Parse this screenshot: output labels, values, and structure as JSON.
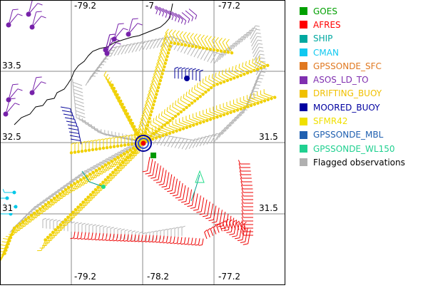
{
  "map": {
    "x_ticks_top": [
      "-79.2",
      "-7",
      "-77.2"
    ],
    "x_ticks_bottom": [
      "-79.2",
      "-78.2",
      "-77.2"
    ],
    "y_ticks_left": [
      "33.5",
      "32.5",
      "31"
    ],
    "y_ticks_right": [
      "31.5",
      "31.5"
    ],
    "colors": {
      "grid": "#888888",
      "coast": "#000000",
      "flagged": "#b4b4b4",
      "afres": "#ee0000",
      "sfmr": "#f0d000",
      "asos": "#7722aa",
      "moored": "#000099",
      "ship": "#00a090",
      "cman": "#00c8e8",
      "goes": "#009900",
      "wl150": "#22dd88"
    }
  },
  "legend": {
    "items": [
      {
        "label": "GOES",
        "color": "#00a000"
      },
      {
        "label": "AFRES",
        "color": "#ff0000"
      },
      {
        "label": "SHIP",
        "color": "#00a8a0"
      },
      {
        "label": "CMAN",
        "color": "#10c8f0"
      },
      {
        "label": "GPSSONDE_SFC",
        "color": "#e07820"
      },
      {
        "label": "ASOS_LD_TO",
        "color": "#8030b0"
      },
      {
        "label": "DRIFTING_BUOY",
        "color": "#f0c000"
      },
      {
        "label": "MOORED_BUOY",
        "color": "#0000a0"
      },
      {
        "label": "SFMR42",
        "color": "#f0e000"
      },
      {
        "label": "GPSSONDE_MBL",
        "color": "#2060b0"
      },
      {
        "label": "GPSSONDE_WL150",
        "color": "#20d090"
      },
      {
        "label": "Flagged observations",
        "color": "#b0b0b0"
      }
    ]
  }
}
